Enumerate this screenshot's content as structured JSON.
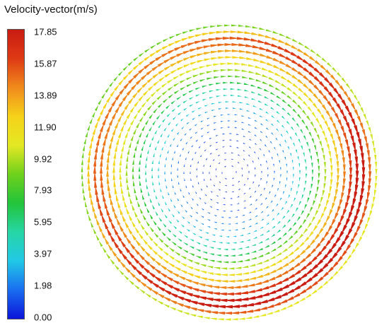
{
  "legend": {
    "title": "Velocity-vector(m/s)",
    "ticks": [
      "17.85",
      "15.87",
      "13.89",
      "11.90",
      "9.92",
      "7.93",
      "5.95",
      "3.97",
      "1.98",
      "0.00"
    ],
    "colorscale": [
      "#0b14d9",
      "#1a6ef0",
      "#21c8e6",
      "#27d6a5",
      "#22c43a",
      "#6fd11c",
      "#e4e823",
      "#f6d21a",
      "#f08a1c",
      "#de3a14",
      "#c91c12"
    ]
  },
  "chart_data": {
    "type": "vector-field",
    "quantity": "Velocity-vector",
    "unit": "m/s",
    "vmin": 0.0,
    "vmax": 17.85,
    "rotation": "clockwise",
    "grid": false,
    "legend_position": "left",
    "speed_profile": {
      "r_fraction": [
        0.0,
        0.2,
        0.4,
        0.55,
        0.68,
        0.8,
        0.88,
        0.95,
        1.0
      ],
      "speed": [
        0.0,
        0.8,
        2.5,
        6.0,
        10.5,
        14.5,
        17.5,
        13.0,
        7.0
      ]
    }
  }
}
